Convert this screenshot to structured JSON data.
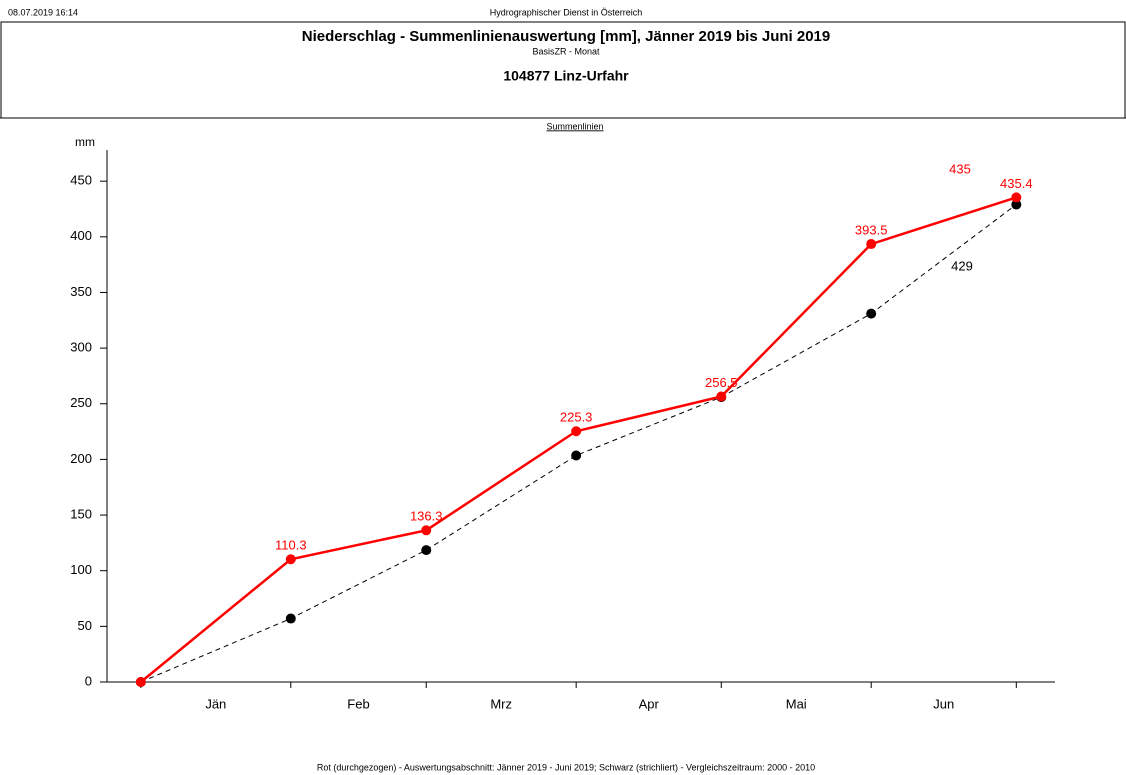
{
  "chart_data": {
    "type": "line",
    "header_left": "08.07.2019 16:14",
    "header_center": "Hydrographischer Dienst in Österreich",
    "title": "Niederschlag - Summenlinienauswertung [mm], Jänner 2019 bis Juni 2019",
    "subtitle": "BasisZR - Monat",
    "station": "104877 Linz-Urfahr",
    "panel_title": "Summenlinien",
    "y_label": "mm",
    "categories": [
      "Jän",
      "Feb",
      "Mrz",
      "Apr",
      "Mai",
      "Jun"
    ],
    "x": [
      0,
      31,
      59,
      90,
      120,
      151,
      181
    ],
    "xlim": [
      -7,
      189
    ],
    "ylim": [
      0,
      478
    ],
    "yticks": [
      0,
      50,
      100,
      150,
      200,
      250,
      300,
      350,
      400,
      450
    ],
    "series": [
      {
        "name": "Rot (durchgezogen)",
        "color": "#ff0000",
        "dashed": false,
        "values": [
          0,
          110.3,
          136.3,
          225.3,
          256.5,
          393.5,
          435.4
        ],
        "value_labels": [
          null,
          "110.3",
          "136.3",
          "225.3",
          "256.5",
          "393.5",
          "435.4"
        ]
      },
      {
        "name": "Schwarz (strichliert)",
        "color": "#000000",
        "dashed": true,
        "values": [
          0,
          57,
          118.5,
          203.5,
          256,
          331,
          429
        ]
      }
    ],
    "annotations": [
      {
        "value": 435,
        "color": "#ff0000"
      },
      {
        "value": 429,
        "color": "#000000"
      }
    ],
    "footnote": "Rot (durchgezogen) - Auswertungsabschnitt: Jänner 2019 - Juni 2019; Schwarz (strichliert) - Vergleichszeitraum: 2000 - 2010"
  }
}
